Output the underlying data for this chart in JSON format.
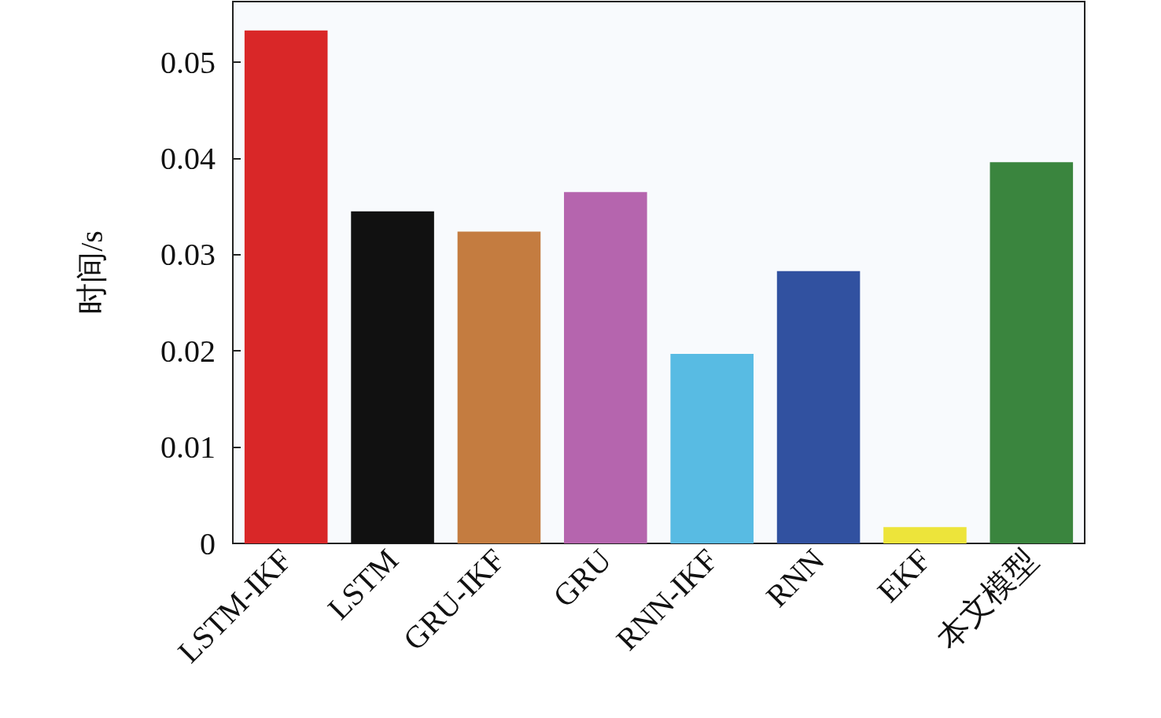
{
  "chart_data": {
    "type": "bar",
    "ylabel": "时间/s",
    "categories": [
      "LSTM-IKF",
      "LSTM",
      "GRU-IKF",
      "GRU",
      "RNN-IKF",
      "RNN",
      "EKF",
      "本文模型"
    ],
    "values": [
      0.0533,
      0.0345,
      0.0324,
      0.0365,
      0.0197,
      0.0283,
      0.0017,
      0.0396
    ],
    "colors": [
      "#d92728",
      "#111111",
      "#c47c40",
      "#b565ae",
      "#58bbe3",
      "#3151a0",
      "#ede43a",
      "#3a853e"
    ],
    "ylim": [
      0,
      0.0563
    ],
    "yticks": [
      0,
      0.01,
      0.02,
      0.03,
      0.04,
      0.05
    ]
  }
}
